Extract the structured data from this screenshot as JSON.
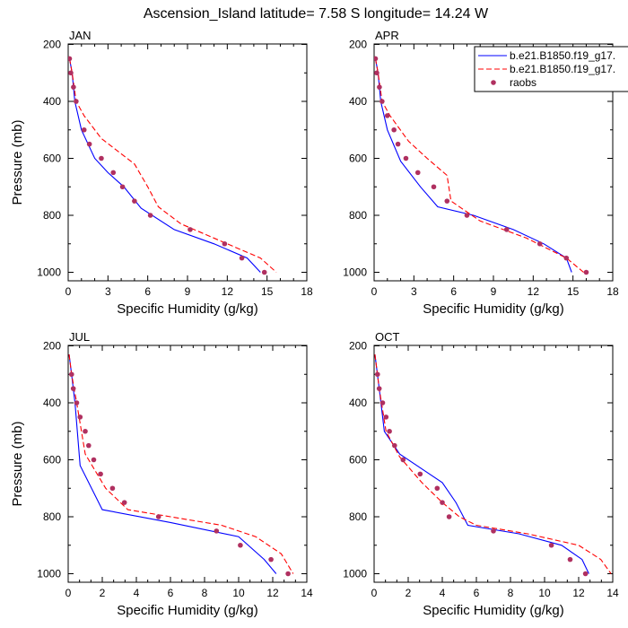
{
  "figure": {
    "title": "Ascension_Island  latitude= 7.58 S longitude= 14.24 W"
  },
  "legend": {
    "entries": [
      {
        "label": "b.e21.B1850.f19_g17.",
        "style": "solid",
        "color": "#0000ff"
      },
      {
        "label": "b.e21.B1850.f19_g17.",
        "style": "dashed",
        "color": "#ff0000"
      },
      {
        "label": "raobs",
        "style": "marker",
        "color": "#b03060"
      }
    ]
  },
  "chart_data": [
    {
      "type": "line",
      "panel": "JAN",
      "title": "JAN",
      "xlabel": "Specific Humidity (g/kg)",
      "ylabel": "Pressure (mb)",
      "xlim": [
        0,
        18
      ],
      "ylim": [
        1000,
        200
      ],
      "xticks": [
        "0",
        "3",
        "6",
        "9",
        "12",
        "15",
        "18"
      ],
      "yticks": [
        "200",
        "400",
        "600",
        "800",
        "1000"
      ],
      "series": [
        {
          "name": "b.e21.B1850.f19_g17.",
          "style": "solid",
          "x": [
            0.1,
            0.3,
            0.5,
            1.0,
            2.0,
            3.0,
            4.2,
            5.5,
            8.0,
            11.0,
            13.5,
            14.5
          ],
          "y": [
            250,
            300,
            400,
            500,
            600,
            650,
            700,
            775,
            850,
            900,
            950,
            1000
          ]
        },
        {
          "name": "b.e21.B1850.f19_g17.",
          "style": "dashed",
          "x": [
            0.1,
            0.3,
            0.6,
            1.2,
            2.5,
            5.0,
            6.0,
            6.8,
            8.5,
            11.5,
            14.5,
            15.7
          ],
          "y": [
            250,
            300,
            400,
            450,
            530,
            620,
            700,
            770,
            830,
            890,
            950,
            1000
          ]
        },
        {
          "name": "raobs",
          "style": "marker",
          "x": [
            0.1,
            0.2,
            0.4,
            0.6,
            1.2,
            1.6,
            2.5,
            3.4,
            4.1,
            5.0,
            6.2,
            9.2,
            11.8,
            13.1,
            14.8
          ],
          "y": [
            250,
            300,
            350,
            400,
            500,
            550,
            600,
            650,
            700,
            750,
            800,
            850,
            900,
            950,
            1000
          ]
        }
      ]
    },
    {
      "type": "line",
      "panel": "APR",
      "title": "APR",
      "xlabel": "Specific Humidity (g/kg)",
      "ylabel": "",
      "xlim": [
        0,
        18
      ],
      "ylim": [
        1000,
        200
      ],
      "xticks": [
        "0",
        "3",
        "6",
        "9",
        "12",
        "15",
        "18"
      ],
      "yticks": [
        "200",
        "400",
        "600",
        "800",
        "1000"
      ],
      "series": [
        {
          "name": "b.e21.B1850.f19_g17.",
          "style": "solid",
          "x": [
            0.1,
            0.3,
            0.5,
            1.0,
            2.0,
            3.5,
            4.8,
            7.5,
            10.5,
            12.8,
            14.5,
            14.9
          ],
          "y": [
            250,
            300,
            400,
            500,
            610,
            700,
            770,
            800,
            850,
            900,
            950,
            1000
          ]
        },
        {
          "name": "b.e21.B1850.f19_g17.",
          "style": "dashed",
          "x": [
            0.1,
            0.3,
            0.6,
            1.2,
            2.6,
            4.0,
            5.5,
            5.8,
            8.0,
            11.5,
            14.5,
            15.8
          ],
          "y": [
            250,
            300,
            400,
            450,
            540,
            600,
            660,
            750,
            820,
            880,
            950,
            1000
          ]
        },
        {
          "name": "raobs",
          "style": "marker",
          "x": [
            0.1,
            0.2,
            0.4,
            0.6,
            1.0,
            1.5,
            1.8,
            2.4,
            3.3,
            4.5,
            5.5,
            7.0,
            10.0,
            12.5,
            14.5,
            16.0
          ],
          "y": [
            250,
            300,
            350,
            400,
            450,
            500,
            550,
            600,
            650,
            700,
            750,
            800,
            850,
            900,
            950,
            1000
          ]
        }
      ]
    },
    {
      "type": "line",
      "panel": "JUL",
      "title": "JUL",
      "xlabel": "Specific Humidity (g/kg)",
      "ylabel": "Pressure (mb)",
      "xlim": [
        0,
        14
      ],
      "ylim": [
        1000,
        200
      ],
      "xticks": [
        "0",
        "2",
        "4",
        "6",
        "8",
        "10",
        "12",
        "14"
      ],
      "yticks": [
        "200",
        "400",
        "600",
        "800",
        "1000"
      ],
      "series": [
        {
          "name": "b.e21.B1850.f19_g17.",
          "style": "solid",
          "x": [
            0.05,
            0.2,
            0.4,
            0.7,
            2.0,
            6.0,
            10.0,
            11.5,
            12.2
          ],
          "y": [
            230,
            300,
            400,
            620,
            775,
            820,
            870,
            950,
            1000
          ]
        },
        {
          "name": "b.e21.B1850.f19_g17.",
          "style": "dashed",
          "x": [
            0.05,
            0.2,
            0.5,
            1.0,
            2.2,
            3.5,
            6.0,
            9.0,
            11.0,
            12.5,
            13.2
          ],
          "y": [
            230,
            300,
            400,
            580,
            700,
            775,
            800,
            830,
            870,
            930,
            1000
          ]
        },
        {
          "name": "raobs",
          "style": "marker",
          "x": [
            0.2,
            0.3,
            0.5,
            0.7,
            1.0,
            1.2,
            1.5,
            1.9,
            2.6,
            3.3,
            5.3,
            8.7,
            10.1,
            11.9,
            12.9
          ],
          "y": [
            300,
            350,
            400,
            450,
            500,
            550,
            600,
            650,
            700,
            750,
            800,
            850,
            900,
            950,
            1000
          ]
        }
      ]
    },
    {
      "type": "line",
      "panel": "OCT",
      "title": "OCT",
      "xlabel": "Specific Humidity (g/kg)",
      "ylabel": "",
      "xlim": [
        0,
        14
      ],
      "ylim": [
        1000,
        200
      ],
      "xticks": [
        "0",
        "2",
        "4",
        "6",
        "8",
        "10",
        "12",
        "14"
      ],
      "yticks": [
        "200",
        "400",
        "600",
        "800",
        "1000"
      ],
      "series": [
        {
          "name": "b.e21.B1850.f19_g17.",
          "style": "solid",
          "x": [
            0.05,
            0.3,
            0.6,
            1.5,
            3.0,
            4.0,
            4.8,
            5.5,
            8.5,
            11.0,
            12.2,
            12.6
          ],
          "y": [
            230,
            350,
            500,
            580,
            640,
            680,
            750,
            830,
            860,
            900,
            950,
            1000
          ]
        },
        {
          "name": "b.e21.B1850.f19_g17.",
          "style": "dashed",
          "x": [
            0.05,
            0.3,
            0.7,
            1.5,
            2.8,
            4.0,
            5.0,
            6.0,
            9.0,
            12.0,
            13.3,
            13.9
          ],
          "y": [
            230,
            350,
            500,
            590,
            680,
            750,
            800,
            830,
            860,
            900,
            950,
            1000
          ]
        },
        {
          "name": "raobs",
          "style": "marker",
          "x": [
            0.2,
            0.3,
            0.5,
            0.7,
            0.9,
            1.2,
            1.7,
            2.7,
            3.7,
            4.0,
            4.4,
            7.0,
            10.4,
            11.5,
            12.4
          ],
          "y": [
            300,
            350,
            400,
            450,
            500,
            550,
            600,
            650,
            700,
            750,
            800,
            850,
            900,
            950,
            1000
          ]
        }
      ]
    }
  ]
}
